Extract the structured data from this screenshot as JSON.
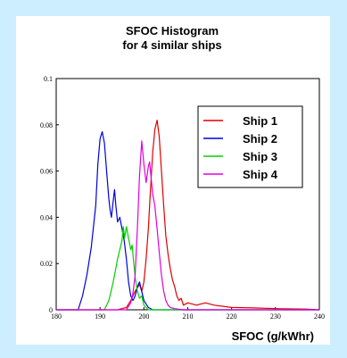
{
  "chart_data": {
    "type": "line",
    "title": [
      "SFOC Histogram",
      "for 4 similar ships"
    ],
    "xlabel": "SFOC (g/kWhr)",
    "ylabel": "",
    "xlim": [
      180,
      240
    ],
    "ylim": [
      0,
      0.1
    ],
    "xticks": [
      "180",
      "190",
      "200",
      "210",
      "220",
      "230",
      "240"
    ],
    "yticks": [
      "0",
      "0.02",
      "0.04",
      "0.06",
      "0.08",
      "0.1"
    ],
    "grid": false,
    "legend_position": "top-right",
    "series": [
      {
        "name": "Ship 1",
        "color": "#e00000",
        "x": [
          180,
          194,
          196,
          197,
          198,
          199,
          199.5,
          200,
          200.5,
          201,
          201.5,
          202,
          202.5,
          203,
          203.5,
          204,
          204.5,
          205,
          205.5,
          206,
          206.5,
          207,
          207.5,
          208,
          208.5,
          209,
          210,
          212,
          214,
          216,
          220,
          225,
          230,
          237,
          240
        ],
        "y": [
          0,
          0,
          0.001,
          0.004,
          0.008,
          0.011,
          0.008,
          0.012,
          0.022,
          0.035,
          0.052,
          0.068,
          0.078,
          0.082,
          0.075,
          0.06,
          0.045,
          0.032,
          0.024,
          0.018,
          0.013,
          0.01,
          0.006,
          0.004,
          0.005,
          0.002,
          0.003,
          0.002,
          0.003,
          0.002,
          0.001,
          0.0008,
          0.0005,
          0.0003,
          0
        ]
      },
      {
        "name": "Ship 2",
        "color": "#0000e0",
        "x": [
          180,
          185,
          186,
          187,
          188,
          189,
          189.5,
          190,
          190.5,
          191,
          191.5,
          192,
          192.3,
          192.6,
          193,
          193.3,
          193.6,
          194,
          194.5,
          195,
          195.5,
          196,
          196.5,
          197,
          197.5,
          198,
          198.5,
          199,
          199.5,
          200,
          201,
          202,
          203,
          240
        ],
        "y": [
          0,
          0,
          0.006,
          0.015,
          0.027,
          0.045,
          0.063,
          0.074,
          0.077,
          0.072,
          0.06,
          0.048,
          0.043,
          0.04,
          0.047,
          0.052,
          0.045,
          0.038,
          0.04,
          0.035,
          0.03,
          0.022,
          0.012,
          0.006,
          0.004,
          0.006,
          0.01,
          0.012,
          0.008,
          0.004,
          0.001,
          0,
          0,
          0
        ]
      },
      {
        "name": "Ship 3",
        "color": "#00d000",
        "x": [
          180,
          191,
          192,
          192.5,
          193,
          193.5,
          194,
          194.5,
          195,
          195.3,
          195.6,
          196,
          196.3,
          196.6,
          197,
          197.3,
          197.6,
          198,
          198.5,
          199,
          199.5,
          200,
          201,
          202,
          240
        ],
        "y": [
          0,
          0,
          0.004,
          0.008,
          0.012,
          0.017,
          0.022,
          0.026,
          0.03,
          0.036,
          0.031,
          0.036,
          0.033,
          0.03,
          0.026,
          0.028,
          0.022,
          0.014,
          0.008,
          0.005,
          0.006,
          0.002,
          0,
          0,
          0
        ]
      },
      {
        "name": "Ship 4",
        "color": "#e000e0",
        "x": [
          180,
          196,
          197,
          197.5,
          198,
          198.5,
          199,
          199.5,
          200,
          200.5,
          201,
          201.3,
          201.6,
          202,
          202.5,
          203,
          203.5,
          204,
          204.5,
          205,
          205.5,
          206,
          207,
          209,
          240
        ],
        "y": [
          0,
          0,
          0.003,
          0.007,
          0.015,
          0.035,
          0.058,
          0.073,
          0.063,
          0.055,
          0.062,
          0.064,
          0.058,
          0.05,
          0.045,
          0.035,
          0.025,
          0.015,
          0.008,
          0.004,
          0.002,
          0.001,
          0.0005,
          0,
          0
        ]
      }
    ]
  }
}
